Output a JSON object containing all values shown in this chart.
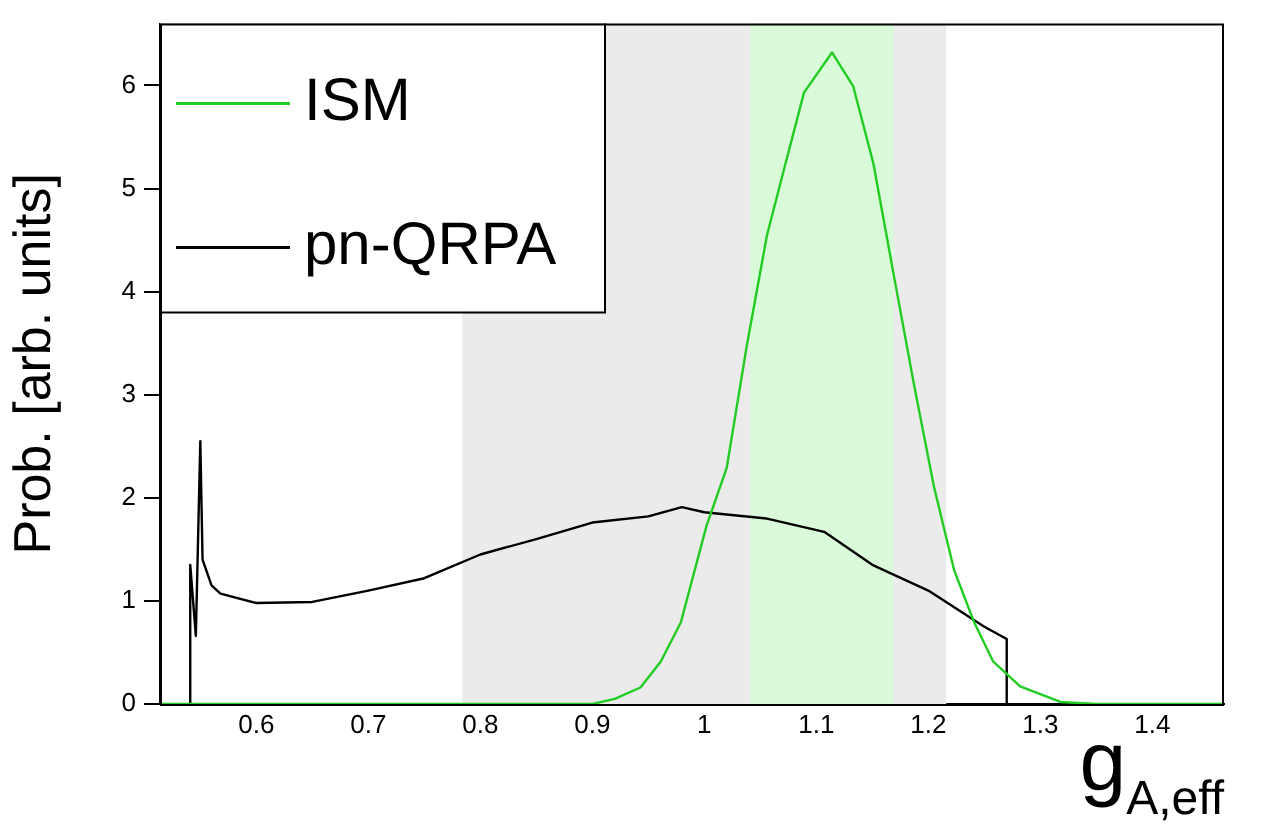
{
  "chart_data": {
    "type": "line",
    "xlabel": "g$_{A,eff}$",
    "ylabel": "Prob. [arb. units]",
    "xlim": [
      0.514,
      1.464
    ],
    "xticks": [
      0.6,
      0.7,
      0.8,
      0.9,
      1,
      1.1,
      1.2,
      1.3,
      1.4
    ],
    "ylim": [
      0,
      6.6
    ],
    "yticks": [
      0,
      1,
      2,
      3,
      4,
      5,
      6
    ],
    "grid": false,
    "legend": "top left",
    "marker": "none",
    "line_style": "solid",
    "bands": [
      {
        "axis": "x",
        "from": 0.784,
        "to": 1.216,
        "color": "#ebebeb"
      },
      {
        "axis": "x",
        "from": 1.041,
        "to": 1.169,
        "color": "#d9fbd9"
      }
    ],
    "series": [
      {
        "name": "ISM",
        "color": "#22cc22",
        "x": [
          0.515,
          0.9,
          0.92,
          0.943,
          0.961,
          0.979,
          1.002,
          1.02,
          1.038,
          1.056,
          1.071,
          1.089,
          1.114,
          1.133,
          1.151,
          1.169,
          1.187,
          1.205,
          1.223,
          1.241,
          1.258,
          1.282,
          1.318,
          1.35,
          1.464
        ],
        "values": [
          0,
          0,
          0.05,
          0.16,
          0.41,
          0.79,
          1.73,
          2.29,
          3.48,
          4.55,
          5.18,
          5.93,
          6.32,
          5.99,
          5.24,
          4.17,
          3.11,
          2.11,
          1.3,
          0.79,
          0.41,
          0.17,
          0.02,
          0,
          0
        ]
      },
      {
        "name": "pn-QRPA",
        "color": "#000000",
        "x": [
          0.541,
          0.541,
          0.546,
          0.55,
          0.552,
          0.56,
          0.568,
          0.6,
          0.65,
          0.7,
          0.75,
          0.8,
          0.85,
          0.9,
          0.95,
          0.98,
          1,
          1.055,
          1.107,
          1.15,
          1.2,
          1.25,
          1.27,
          1.27
        ],
        "values": [
          0,
          1.35,
          0.66,
          2.55,
          1.4,
          1.15,
          1.07,
          0.98,
          0.99,
          1.1,
          1.22,
          1.45,
          1.6,
          1.76,
          1.82,
          1.91,
          1.86,
          1.8,
          1.67,
          1.35,
          1.1,
          0.75,
          0.63,
          0
        ]
      }
    ]
  }
}
